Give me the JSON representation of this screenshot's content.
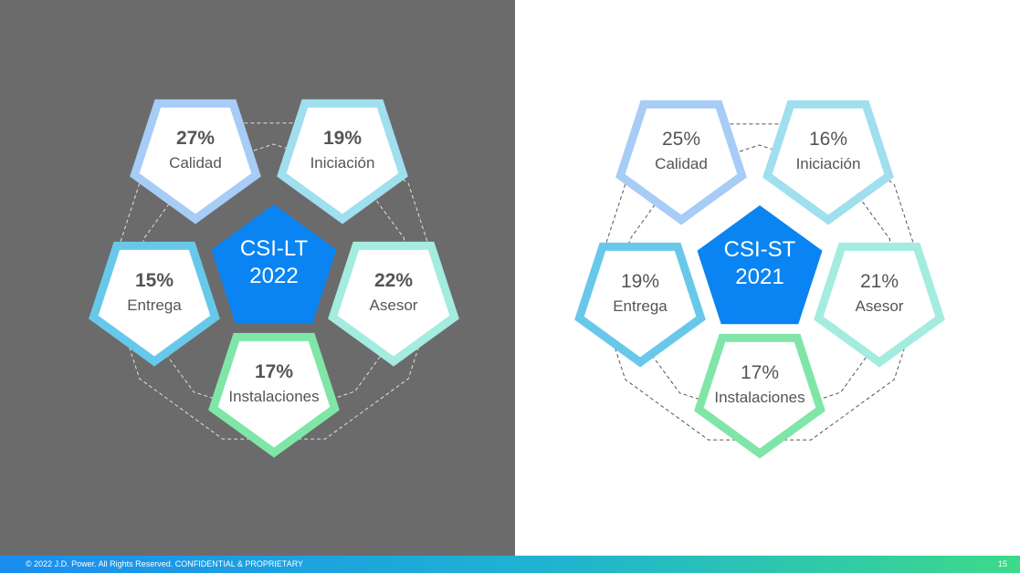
{
  "diagrams": [
    {
      "id": "lt",
      "theme": "dark",
      "center": {
        "line1": "CSI-LT",
        "line2": "2022"
      },
      "factors": [
        {
          "value": "27%",
          "label": "Calidad",
          "color": "#a7ccf5"
        },
        {
          "value": "19%",
          "label": "Iniciación",
          "color": "#9fdfee"
        },
        {
          "value": "22%",
          "label": "Asesor",
          "color": "#a3ecdf"
        },
        {
          "value": "17%",
          "label": "Instalaciones",
          "color": "#7fe6a8"
        },
        {
          "value": "15%",
          "label": "Entrega",
          "color": "#68c8ea"
        }
      ]
    },
    {
      "id": "st",
      "theme": "light",
      "center": {
        "line1": "CSI-ST",
        "line2": "2021"
      },
      "factors": [
        {
          "value": "25%",
          "label": "Calidad",
          "color": "#a7ccf5"
        },
        {
          "value": "16%",
          "label": "Iniciación",
          "color": "#9fdfee"
        },
        {
          "value": "21%",
          "label": "Asesor",
          "color": "#a3ecdf"
        },
        {
          "value": "17%",
          "label": "Instalaciones",
          "color": "#7fe6a8"
        },
        {
          "value": "19%",
          "label": "Entrega",
          "color": "#68c8ea"
        }
      ]
    }
  ],
  "colors": {
    "center_fill": "#0a84f2",
    "dark_panel": "#6b6b6b",
    "text_dark": "#555555"
  },
  "footer": {
    "copyright": "© 2022 J.D. Power. All Rights Reserved. CONFIDENTIAL & PROPRIETARY",
    "page_number": "15"
  }
}
